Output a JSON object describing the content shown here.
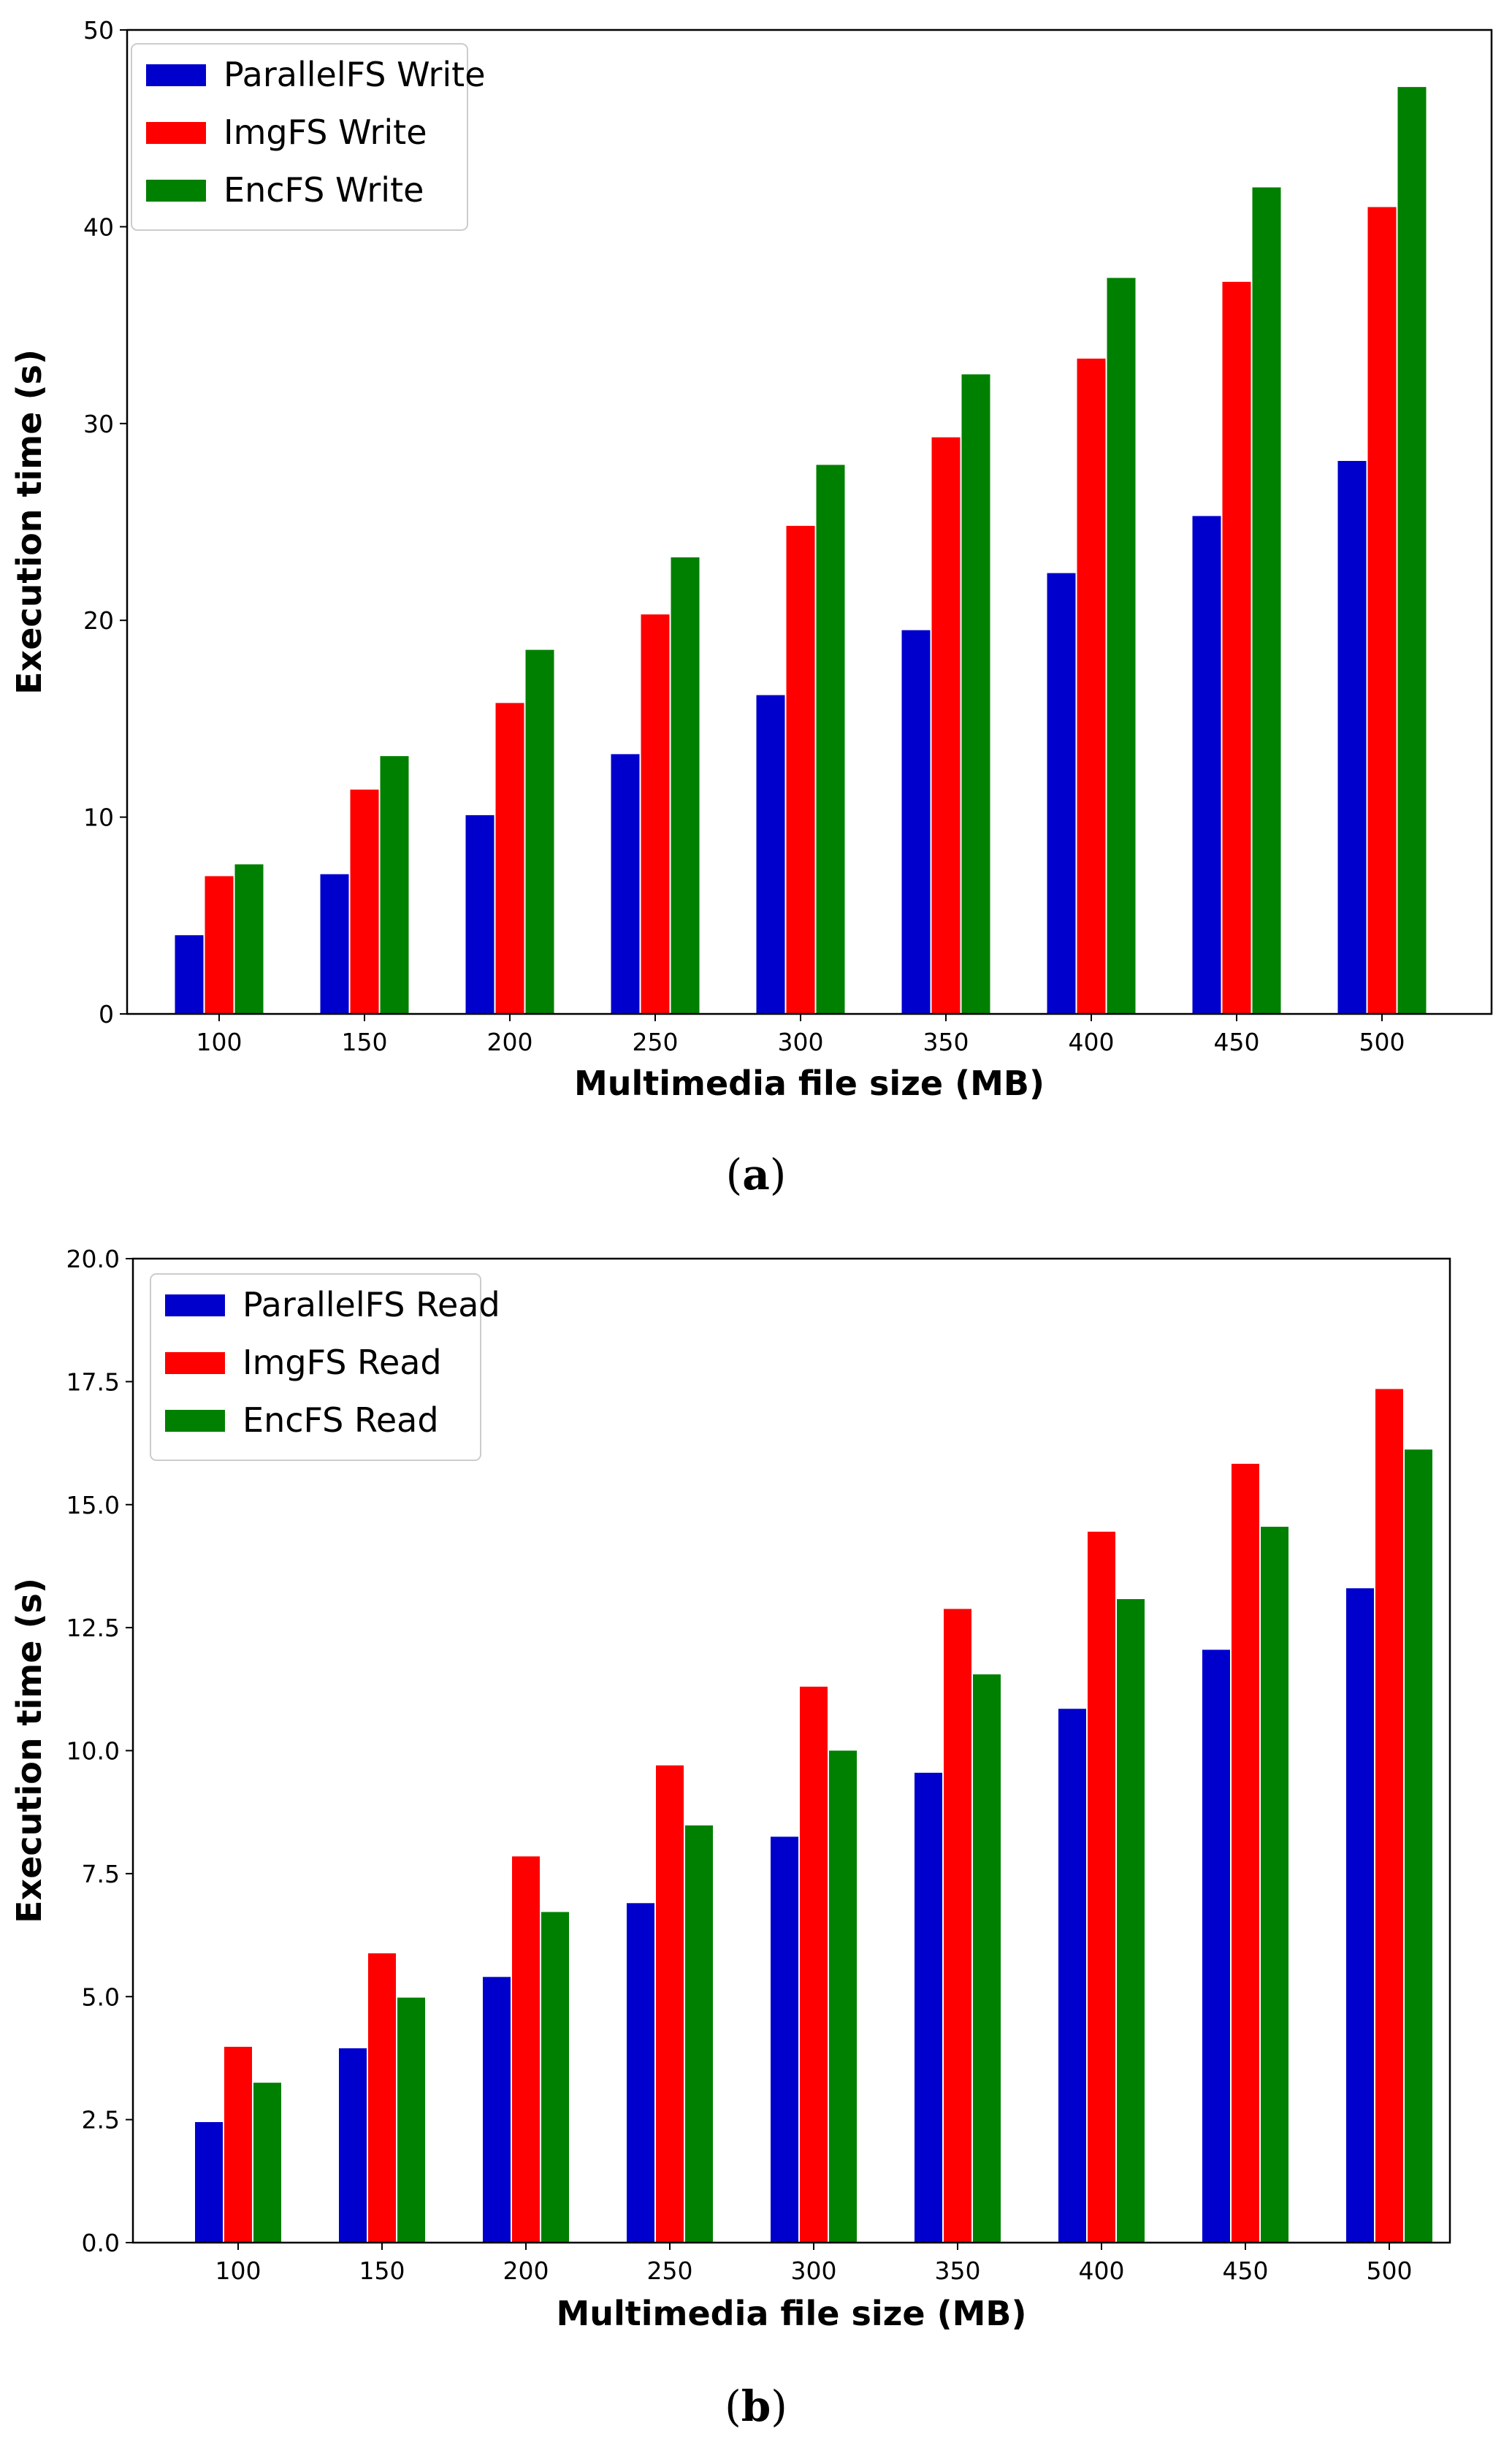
{
  "chart_data": [
    {
      "type": "bar",
      "caption_letter": "a",
      "xlabel": "Multimedia file size (MB)",
      "ylabel": "Execution time (s)",
      "ylim": [
        0,
        50
      ],
      "yticks": [
        0,
        10,
        20,
        30,
        40,
        50
      ],
      "ytick_labels": [
        "0",
        "10",
        "20",
        "30",
        "40",
        "50"
      ],
      "categories": [
        "100",
        "150",
        "200",
        "250",
        "300",
        "350",
        "400",
        "450",
        "500"
      ],
      "legend_position": "top-left",
      "grid": false,
      "series": [
        {
          "name": "ParallelFS Write",
          "color": "#0000cc",
          "values": [
            4.0,
            7.1,
            10.1,
            13.2,
            16.2,
            19.5,
            22.4,
            25.3,
            28.1
          ]
        },
        {
          "name": "ImgFS Write",
          "color": "#ff0000",
          "values": [
            7.0,
            11.4,
            15.8,
            20.3,
            24.8,
            29.3,
            33.3,
            37.2,
            41.0
          ]
        },
        {
          "name": "EncFS Write",
          "color": "#008000",
          "values": [
            7.6,
            13.1,
            18.5,
            23.2,
            27.9,
            32.5,
            37.4,
            42.0,
            47.1
          ]
        }
      ]
    },
    {
      "type": "bar",
      "caption_letter": "b",
      "xlabel": "Multimedia file size (MB)",
      "ylabel": "Execution time (s)",
      "ylim": [
        0,
        20
      ],
      "yticks": [
        0,
        2.5,
        5,
        7.5,
        10,
        12.5,
        15,
        17.5,
        20
      ],
      "ytick_labels": [
        "0.0",
        "2.5",
        "5.0",
        "7.5",
        "10.0",
        "12.5",
        "15.0",
        "17.5",
        "20.0"
      ],
      "categories": [
        "100",
        "150",
        "200",
        "250",
        "300",
        "350",
        "400",
        "450",
        "500"
      ],
      "legend_position": "top-left",
      "grid": false,
      "series": [
        {
          "name": "ParallelFS Read",
          "color": "#0000cc",
          "values": [
            2.45,
            3.95,
            5.4,
            6.9,
            8.25,
            9.55,
            10.85,
            12.05,
            13.3
          ]
        },
        {
          "name": "ImgFS Read",
          "color": "#ff0000",
          "values": [
            3.98,
            5.88,
            7.85,
            9.7,
            11.3,
            12.88,
            14.45,
            15.83,
            17.35
          ]
        },
        {
          "name": "EncFS Read",
          "color": "#008000",
          "values": [
            3.25,
            4.98,
            6.72,
            8.48,
            10.0,
            11.55,
            13.08,
            14.55,
            16.12
          ]
        }
      ]
    }
  ]
}
